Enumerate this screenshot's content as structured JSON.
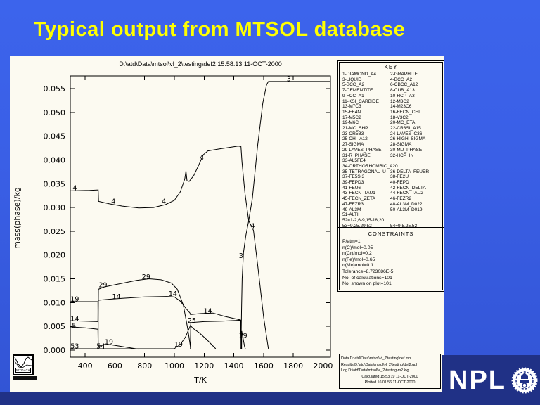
{
  "title": "Typical output from MTSOL database",
  "panel": {
    "header": "D:\\atd\\Data\\mtsol\\vl_2\\testing\\def2  15:58:13 11-OCT-2000"
  },
  "key": {
    "title": "KEY",
    "rows": [
      [
        "1-DIAMOND_A4",
        "2-GRAPHITE"
      ],
      [
        "3-LIQUID",
        "4-BCC_A2"
      ],
      [
        "5-BCC_A2",
        "6-CBCC_A12"
      ],
      [
        "7-CEMENTITE",
        "8-CUB_A13"
      ],
      [
        "9-FCC_A1",
        "10-HCP_A3"
      ],
      [
        "11-KSI_CARBIDE",
        "12-M3C2"
      ],
      [
        "13-M7C3",
        "14-M23C6"
      ],
      [
        "15-FE4N",
        "16-FECN_CHI"
      ],
      [
        "17-M5C2",
        "18-V3C2"
      ],
      [
        "19-M6C",
        "20-MC_ETA"
      ],
      [
        "21-MC_SHP",
        "22-CR3SI_A15"
      ],
      [
        "23-CR5B3",
        "24-LAVES_C36"
      ],
      [
        "25-CHI_A12",
        "26-HIGH_SIGMA"
      ],
      [
        "27-SIGMA",
        "28-SIGMA"
      ],
      [
        "29-LAVES_PHASE",
        "30-MU_PHASE"
      ],
      [
        "31-R_PHASE",
        "32-HCP_IN"
      ],
      [
        "33-AL5FE4"
      ],
      [
        "34-ORTHORHOMBIC_A20"
      ],
      [
        "35-TETRAGONAL_U",
        "36-DELTA_FEUER"
      ],
      [
        "37-FE5SI3",
        "38-FE2U"
      ],
      [
        "39-FEPD3",
        "40-FEPD"
      ],
      [
        "41-FEU6",
        "42-FECN_DELTA"
      ],
      [
        "43-FECN_TAU1",
        "44-FECN_TAU2"
      ],
      [
        "45-FECN_ZETA",
        "46-FEZR2"
      ],
      [
        "47-FEZR3",
        "48-AL3M_D022"
      ],
      [
        "49-AL3M",
        "50-AL3M_D019"
      ],
      [
        "51-ALTI"
      ],
      [
        "52=1-2,6-9,15-18,20"
      ],
      [
        "53=9,25,29,52",
        "54=9,5,25,52"
      ]
    ]
  },
  "constraints": {
    "title": "CONSTRAINTS",
    "lines": [
      "P/atm=1",
      "n(C)/mol=0.05",
      "n(Cr)/mol=0.2",
      "n(Fe)/mol=0.65",
      "n(Mo)/mol=0.1",
      "Tolerance=8.723086E-5",
      "No. of calculations=101",
      "No. shown on plot=101"
    ]
  },
  "file_info": {
    "centered_from": 3,
    "lines": [
      "Data D:\\atd\\Data\\mtsol\\vl_2\\testing\\def.mpi",
      "Results D:\\atd\\Data\\mtsol\\vl_2\\testing\\def2.gph",
      "Log D:\\atd\\Data\\mtsol\\vl_2\\testing\\m2.log",
      "Calculated 15:53:19 11-OCT-2000",
      "Plotted 16:01:56 11-OCT-2000"
    ]
  },
  "logos": {
    "npl": "NPL",
    "mtdata": "MTDATA"
  },
  "colors": {
    "slide_blue_top": "#3c64ec",
    "slide_blue_bottom": "#3254d4",
    "title_yellow": "#ffff00",
    "navy": "#203186",
    "panel_bg": "#fcfaf1",
    "line_black": "#000000"
  },
  "chart_data": {
    "type": "line",
    "title": "D:\\atd\\Data\\mtsol\\vl_2\\testing\\def2  15:58:13 11-OCT-2000",
    "xlabel": "T/K",
    "ylabel": "mass(phase)/kg",
    "xlim": [
      300,
      2050
    ],
    "ylim": [
      -0.0015,
      0.0577
    ],
    "xticks": [
      400,
      600,
      800,
      1000,
      1200,
      1400,
      1600,
      1800,
      2000
    ],
    "yticks": [
      0,
      0.005,
      0.01,
      0.015,
      0.02,
      0.025,
      0.03,
      0.035,
      0.04,
      0.045,
      0.05,
      0.055
    ],
    "grid": false,
    "legend_position": "separate KEY box at right",
    "series": [
      {
        "id": 4,
        "name": "BCC_A2",
        "points": [
          [
            300,
            0.0335
          ],
          [
            430,
            0.0336
          ],
          [
            488,
            0.0337
          ],
          [
            490,
            0.0313
          ],
          [
            560,
            0.0308
          ],
          [
            650,
            0.0303
          ],
          [
            760,
            0.0299
          ],
          [
            860,
            0.03
          ],
          [
            940,
            0.0306
          ],
          [
            1000,
            0.0315
          ],
          [
            1040,
            0.0333
          ],
          [
            1070,
            0.036
          ],
          [
            1078,
            0.0377
          ],
          [
            1085,
            0.0356
          ],
          [
            1100,
            0.0355
          ],
          [
            1130,
            0.0367
          ],
          [
            1165,
            0.039
          ],
          [
            1195,
            0.0411
          ],
          [
            1225,
            0.0419
          ],
          [
            1300,
            0.0423
          ],
          [
            1430,
            0.0429
          ],
          [
            1448,
            0.0428
          ],
          [
            1455,
            0.0395
          ],
          [
            1475,
            0.033
          ],
          [
            1500,
            0.0272
          ],
          [
            1532,
            0.0252
          ],
          [
            1560,
            0.018
          ],
          [
            1600,
            0.007
          ],
          [
            1633,
            0.0002
          ]
        ]
      },
      {
        "id": 3,
        "name": "LIQUID",
        "points": [
          [
            1448,
            0.0002
          ],
          [
            1452,
            0.009
          ],
          [
            1456,
            0.015
          ],
          [
            1465,
            0.0205
          ],
          [
            1480,
            0.024
          ],
          [
            1500,
            0.0272
          ],
          [
            1525,
            0.032
          ],
          [
            1560,
            0.043
          ],
          [
            1595,
            0.052
          ],
          [
            1620,
            0.0558
          ],
          [
            1633,
            0.0565
          ],
          [
            2048,
            0.0565
          ]
        ]
      },
      {
        "id": 14,
        "name": "M23C6",
        "points": [
          [
            300,
            0.0062
          ],
          [
            486,
            0.006
          ],
          [
            488,
            0.0105
          ],
          [
            560,
            0.0107
          ],
          [
            650,
            0.0109
          ],
          [
            800,
            0.0112
          ],
          [
            950,
            0.0113
          ],
          [
            1000,
            0.0112
          ],
          [
            1040,
            0.0103
          ],
          [
            1080,
            0.0087
          ],
          [
            1105,
            0.0078
          ],
          [
            1108,
            0.0075
          ],
          [
            1180,
            0.0077
          ],
          [
            1260,
            0.0078
          ],
          [
            1340,
            0.0071
          ],
          [
            1440,
            0.0064
          ],
          [
            1448,
            0.0063
          ],
          [
            1452,
            0.0002
          ]
        ]
      },
      {
        "id": 29,
        "name": "LAVES_PHASE",
        "points": [
          [
            487,
            0.0003
          ],
          [
            489,
            0.0128
          ],
          [
            530,
            0.0133
          ],
          [
            640,
            0.014
          ],
          [
            750,
            0.0147
          ],
          [
            830,
            0.015
          ],
          [
            910,
            0.0148
          ],
          [
            980,
            0.0141
          ],
          [
            1020,
            0.0128
          ],
          [
            1060,
            0.0095
          ],
          [
            1090,
            0.0045
          ],
          [
            1110,
            0.0003
          ]
        ]
      },
      {
        "id": 19,
        "name": "M6C",
        "points": [
          [
            300,
            0.0102
          ],
          [
            486,
            0.0102
          ],
          [
            488,
            0.0008
          ],
          [
            540,
            0.0013
          ],
          [
            620,
            0.0009
          ],
          [
            760,
            0.0002
          ]
        ]
      },
      {
        "id": 19,
        "name": "M6C",
        "points": [
          [
            995,
            0.0002
          ],
          [
            1040,
            0.0012
          ],
          [
            1075,
            0.0028
          ],
          [
            1100,
            0.0046
          ],
          [
            1108,
            0.0052
          ],
          [
            1125,
            0.0046
          ],
          [
            1170,
            0.0036
          ],
          [
            1225,
            0.002
          ],
          [
            1278,
            0.0003
          ]
        ]
      },
      {
        "id": 19,
        "name": "M6C",
        "points": [
          [
            1452,
            0.0002
          ],
          [
            1453,
            0.004
          ],
          [
            1462,
            0.0025
          ],
          [
            1472,
            0.0008
          ],
          [
            1478,
            0.0002
          ]
        ]
      },
      {
        "id": 25,
        "name": "CHI_A12",
        "points": [
          [
            1108,
            0.0002
          ],
          [
            1110,
            0.0058
          ],
          [
            1200,
            0.006
          ],
          [
            1320,
            0.0061
          ],
          [
            1445,
            0.0063
          ],
          [
            1450,
            0.0002
          ]
        ]
      },
      {
        "id": 5,
        "name": "BCC_A2",
        "points": [
          [
            300,
            0.0049
          ],
          [
            400,
            0.0047
          ],
          [
            486,
            0.0044
          ],
          [
            488,
            0.0003
          ]
        ]
      },
      {
        "id": 53,
        "name": "9,25,29,52",
        "points": [
          [
            300,
            0.0003
          ],
          [
            486,
            0.0003
          ]
        ]
      },
      {
        "id": 54,
        "name": "9,5,25,52",
        "points": [
          [
            490,
            0.0003
          ],
          [
            1000,
            0.0003
          ]
        ]
      }
    ],
    "labels": [
      {
        "text": "4",
        "T": 330,
        "m": 0.0341
      },
      {
        "text": "4",
        "T": 590,
        "m": 0.0313
      },
      {
        "text": "4",
        "T": 930,
        "m": 0.0313
      },
      {
        "text": "4",
        "T": 1185,
        "m": 0.0405
      },
      {
        "text": "4",
        "T": 1527,
        "m": 0.0261
      },
      {
        "text": "3",
        "T": 1770,
        "m": 0.057
      },
      {
        "text": "3",
        "T": 1448,
        "m": 0.0198
      },
      {
        "text": "19",
        "T": 330,
        "m": 0.0107
      },
      {
        "text": "14",
        "T": 330,
        "m": 0.0066
      },
      {
        "text": "5",
        "T": 325,
        "m": 0.0051
      },
      {
        "text": "53",
        "T": 330,
        "m": 0.0008
      },
      {
        "text": "54",
        "T": 505,
        "m": 0.0008
      },
      {
        "text": "29",
        "T": 520,
        "m": 0.0137
      },
      {
        "text": "14",
        "T": 610,
        "m": 0.0112
      },
      {
        "text": "19",
        "T": 560,
        "m": 0.0017
      },
      {
        "text": "29",
        "T": 810,
        "m": 0.0154
      },
      {
        "text": "14",
        "T": 990,
        "m": 0.0118
      },
      {
        "text": "19",
        "T": 1028,
        "m": 0.0012
      },
      {
        "text": "25",
        "T": 1118,
        "m": 0.0062
      },
      {
        "text": "14",
        "T": 1225,
        "m": 0.0082
      },
      {
        "text": "19",
        "T": 1462,
        "m": 0.003
      }
    ]
  }
}
